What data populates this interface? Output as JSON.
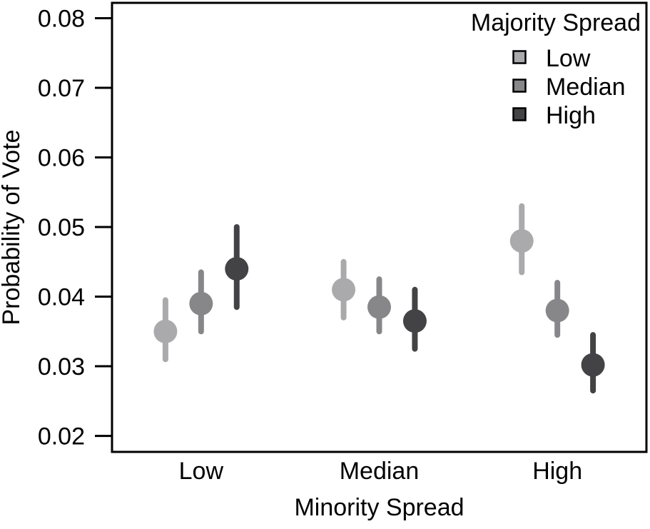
{
  "chart_data": {
    "type": "scatter",
    "subtype": "dodged-point-estimates-with-confidence-intervals",
    "title": "",
    "xlabel": "Minority Spread",
    "ylabel": "Probability of Vote",
    "categories": [
      "Low",
      "Median",
      "High"
    ],
    "yticks": [
      0.02,
      0.03,
      0.04,
      0.05,
      0.06,
      0.07,
      0.08
    ],
    "ylim": [
      0.0177,
      0.0822
    ],
    "grid": false,
    "legend_title": "Majority Spread",
    "legend_position": "top-right-inside",
    "background_color": "#ffffff",
    "axis_color": "#000000",
    "series": [
      {
        "name": "Low",
        "color": "#aaaaac",
        "offset": -0.2,
        "values": [
          0.035,
          0.041,
          0.048
        ],
        "ci_low": [
          0.031,
          0.037,
          0.0435
        ],
        "ci_high": [
          0.0395,
          0.045,
          0.053
        ]
      },
      {
        "name": "Median",
        "color": "#87878a",
        "offset": 0,
        "values": [
          0.039,
          0.0385,
          0.038
        ],
        "ci_low": [
          0.035,
          0.035,
          0.0345
        ],
        "ci_high": [
          0.0435,
          0.0425,
          0.042
        ]
      },
      {
        "name": "High",
        "color": "#434346",
        "offset": 0.2,
        "values": [
          0.044,
          0.0365,
          0.0302
        ],
        "ci_low": [
          0.0385,
          0.0325,
          0.0265
        ],
        "ci_high": [
          0.05,
          0.041,
          0.0345
        ]
      }
    ]
  }
}
